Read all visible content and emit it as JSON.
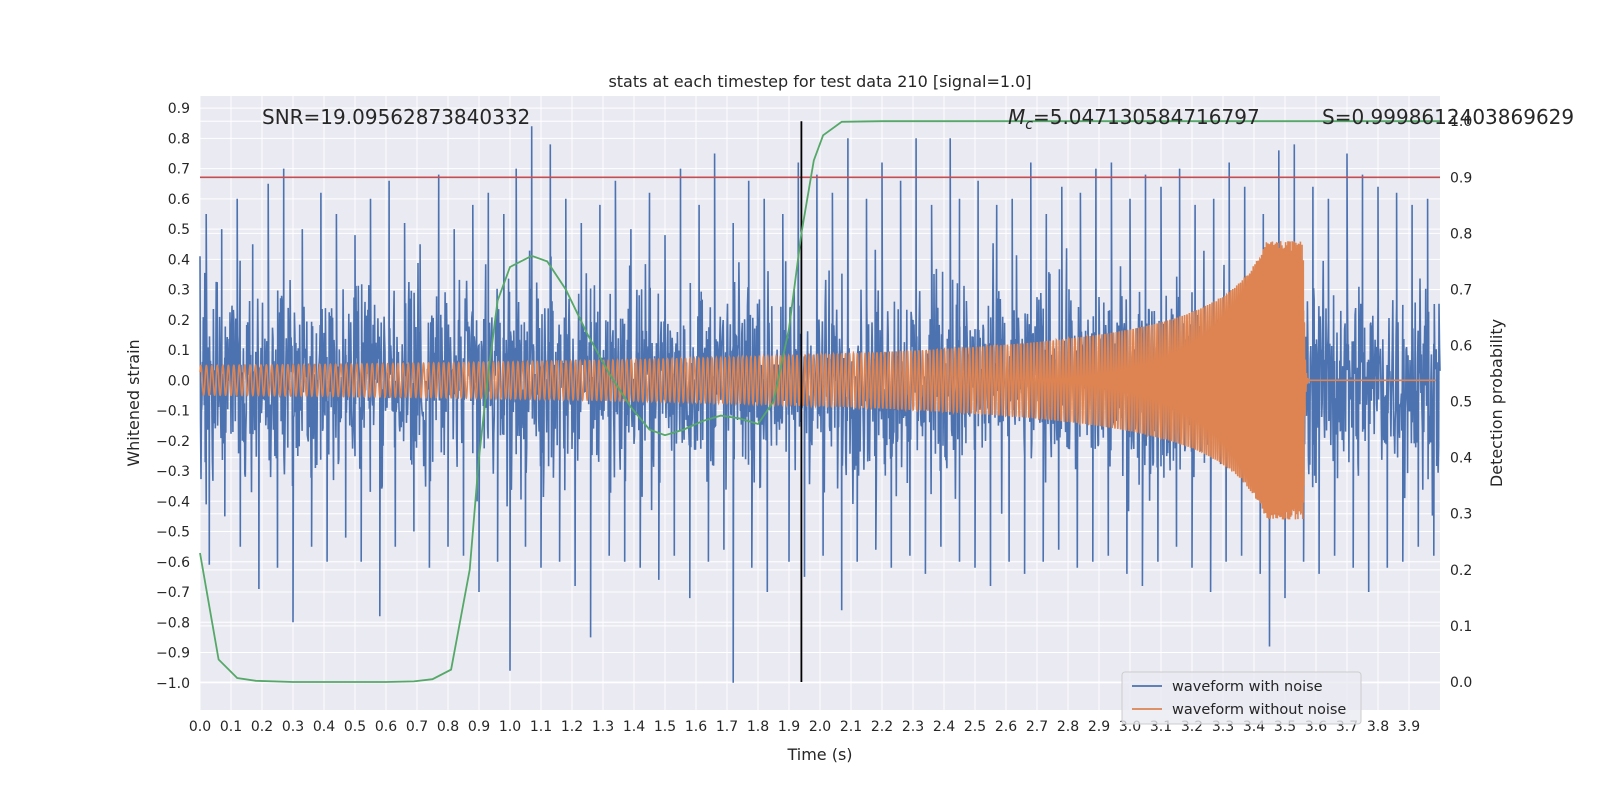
{
  "chart_data": {
    "type": "line",
    "title": "stats at each timestep for test data 210 [signal=1.0]",
    "xlabel": "Time (s)",
    "ylabel": "Whitened strain",
    "y2label": "Detection probability",
    "xlim": [
      0.0,
      4.0
    ],
    "ylim": [
      -1.09,
      0.94
    ],
    "y2lim": [
      -0.05,
      1.045
    ],
    "x_ticks": [
      "0.0",
      "0.1",
      "0.2",
      "0.3",
      "0.4",
      "0.5",
      "0.6",
      "0.7",
      "0.8",
      "0.9",
      "1.0",
      "1.1",
      "1.2",
      "1.3",
      "1.4",
      "1.5",
      "1.6",
      "1.7",
      "1.8",
      "1.9",
      "2.0",
      "2.1",
      "2.2",
      "2.3",
      "2.4",
      "2.5",
      "2.6",
      "2.7",
      "2.8",
      "2.9",
      "3.0",
      "3.1",
      "3.2",
      "3.3",
      "3.4",
      "3.5",
      "3.6",
      "3.7",
      "3.8",
      "3.9"
    ],
    "y_ticks": [
      "0.9",
      "0.8",
      "0.7",
      "0.6",
      "0.5",
      "0.4",
      "0.3",
      "0.2",
      "0.1",
      "0.0",
      "−0.1",
      "−0.2",
      "−0.3",
      "−0.4",
      "−0.5",
      "−0.6",
      "−0.7",
      "−0.8",
      "−0.9",
      "−1.0"
    ],
    "y2_ticks": [
      "0.0",
      "0.1",
      "0.2",
      "0.3",
      "0.4",
      "0.5",
      "0.6",
      "0.7",
      "0.8",
      "0.9",
      "1.0"
    ],
    "annotations": {
      "snr": "SNR=19.09562873840332",
      "mc_symbol": "M",
      "mc_sub": "c",
      "mc_value": "=5.047130584716797",
      "s": "S=0.9998612403869629"
    },
    "threshold_y2": 0.9,
    "marker_time": 1.94,
    "series": [
      {
        "name": "waveform with noise",
        "color": "#4c72b0",
        "description": "whitened strain with noise (approximate envelope)",
        "peak_times": [
          0.02,
          0.07,
          0.12,
          0.17,
          0.22,
          0.27,
          0.33,
          0.39,
          0.44,
          0.5,
          0.55,
          0.61,
          0.66,
          0.71,
          0.77,
          0.82,
          0.88,
          0.93,
          0.98,
          1.02,
          1.07,
          1.13,
          1.18,
          1.23,
          1.29,
          1.34,
          1.39,
          1.45,
          1.5,
          1.55,
          1.61,
          1.66,
          1.72,
          1.77,
          1.82,
          1.88,
          1.93,
          1.99,
          2.04,
          2.09,
          2.15,
          2.2,
          2.26,
          2.31,
          2.36,
          2.42,
          2.45,
          2.51,
          2.57,
          2.62,
          2.68,
          2.73,
          2.78,
          2.84,
          2.89,
          2.94,
          3.0,
          3.05,
          3.1,
          3.16,
          3.21,
          3.27,
          3.32,
          3.37,
          3.43,
          3.48,
          3.53,
          3.59,
          3.64,
          3.7,
          3.75,
          3.8,
          3.86,
          3.91,
          3.96
        ],
        "peak_values": [
          0.55,
          0.5,
          0.6,
          0.45,
          0.65,
          0.7,
          0.5,
          0.62,
          0.55,
          0.48,
          0.6,
          0.66,
          0.52,
          0.45,
          0.68,
          0.5,
          0.58,
          0.62,
          0.55,
          0.7,
          0.84,
          0.78,
          0.6,
          0.52,
          0.58,
          0.66,
          0.5,
          0.62,
          0.48,
          0.7,
          0.58,
          0.75,
          0.52,
          0.66,
          0.6,
          0.55,
          0.72,
          0.68,
          0.62,
          0.8,
          0.6,
          0.72,
          0.66,
          0.8,
          0.58,
          0.8,
          0.6,
          0.66,
          0.58,
          0.6,
          0.72,
          0.55,
          0.64,
          0.62,
          0.7,
          0.72,
          0.6,
          0.68,
          0.64,
          0.7,
          0.58,
          0.6,
          0.72,
          0.64,
          0.55,
          0.76,
          0.78,
          0.64,
          0.6,
          0.75,
          0.68,
          0.64,
          0.62,
          0.58,
          0.6
        ],
        "trough_times": [
          0.03,
          0.08,
          0.13,
          0.19,
          0.25,
          0.3,
          0.36,
          0.41,
          0.47,
          0.52,
          0.58,
          0.63,
          0.69,
          0.74,
          0.8,
          0.85,
          0.9,
          0.96,
          1.0,
          1.05,
          1.1,
          1.16,
          1.21,
          1.26,
          1.32,
          1.37,
          1.42,
          1.48,
          1.53,
          1.58,
          1.64,
          1.69,
          1.72,
          1.78,
          1.83,
          1.9,
          1.95,
          2.01,
          2.07,
          2.12,
          2.18,
          2.23,
          2.29,
          2.34,
          2.39,
          2.45,
          2.5,
          2.55,
          2.61,
          2.66,
          2.72,
          2.77,
          2.83,
          2.88,
          2.93,
          2.99,
          3.04,
          3.09,
          3.15,
          3.2,
          3.26,
          3.31,
          3.36,
          3.42,
          3.45,
          3.5,
          3.56,
          3.61,
          3.66,
          3.72,
          3.77,
          3.83,
          3.88,
          3.93,
          3.98
        ],
        "trough_values": [
          -0.61,
          -0.45,
          -0.55,
          -0.69,
          -0.62,
          -0.8,
          -0.55,
          -0.6,
          -0.52,
          -0.6,
          -0.78,
          -0.55,
          -0.5,
          -0.62,
          -0.55,
          -0.58,
          -0.7,
          -0.6,
          -0.96,
          -0.55,
          -0.62,
          -0.6,
          -0.68,
          -0.85,
          -0.58,
          -0.6,
          -0.62,
          -0.66,
          -0.58,
          -0.72,
          -0.6,
          -0.56,
          -1.0,
          -0.62,
          -0.7,
          -0.6,
          -0.65,
          -0.58,
          -0.76,
          -0.6,
          -0.56,
          -0.62,
          -0.58,
          -0.64,
          -0.55,
          -0.6,
          -0.62,
          -0.68,
          -0.6,
          -0.64,
          -0.6,
          -0.56,
          -0.62,
          -0.6,
          -0.58,
          -0.64,
          -0.68,
          -0.6,
          -0.55,
          -0.62,
          -0.7,
          -0.6,
          -0.58,
          -0.64,
          -0.88,
          -0.72,
          -0.6,
          -0.64,
          -0.58,
          -0.62,
          -0.7,
          -0.62,
          -0.6,
          -0.55,
          -0.58
        ]
      },
      {
        "name": "waveform without noise",
        "color": "#dd8452",
        "description": "chirp template: amplitude grows from ~0.05 to ~0.46 at merger (3.56 s), then ringdown to 0",
        "merger_time": 3.56,
        "start_amplitude": 0.05,
        "peak_amplitude": 0.46
      },
      {
        "name": "detection probability",
        "color": "#55a868",
        "axis": "right",
        "x": [
          0.0,
          0.06,
          0.12,
          0.18,
          0.3,
          0.45,
          0.6,
          0.69,
          0.75,
          0.81,
          0.87,
          0.9,
          0.93,
          0.96,
          1.0,
          1.07,
          1.12,
          1.18,
          1.25,
          1.32,
          1.39,
          1.45,
          1.5,
          1.56,
          1.62,
          1.68,
          1.74,
          1.8,
          1.85,
          1.9,
          1.94,
          1.98,
          2.01,
          2.07,
          2.2,
          2.5,
          3.0,
          3.5,
          4.0
        ],
        "y": [
          0.23,
          0.04,
          0.007,
          0.002,
          0.0,
          0.0,
          0.0,
          0.001,
          0.005,
          0.022,
          0.2,
          0.4,
          0.55,
          0.68,
          0.74,
          0.76,
          0.75,
          0.7,
          0.62,
          0.55,
          0.49,
          0.45,
          0.44,
          0.45,
          0.465,
          0.475,
          0.47,
          0.46,
          0.5,
          0.63,
          0.8,
          0.93,
          0.975,
          0.999,
          1.0,
          1.0,
          1.0,
          1.0,
          1.0
        ]
      }
    ],
    "legend": {
      "position": "lower-right",
      "entries": [
        {
          "label": "waveform with noise",
          "color": "#4c72b0"
        },
        {
          "label": "waveform without noise",
          "color": "#dd8452"
        }
      ]
    }
  }
}
